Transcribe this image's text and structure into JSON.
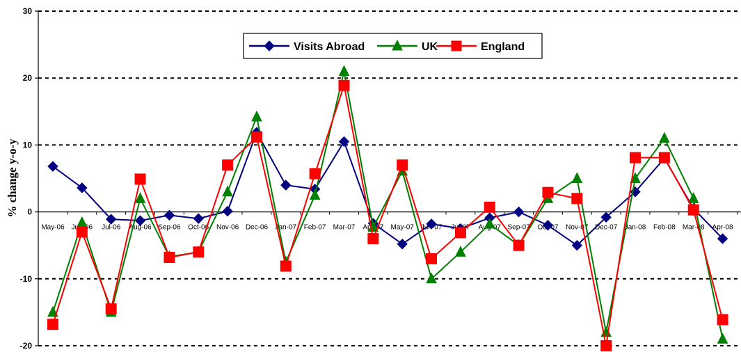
{
  "chart_data": {
    "type": "line",
    "ylabel": "% change y-o-y",
    "xlabel": "",
    "ylim": [
      -20,
      30
    ],
    "yticks": [
      "30",
      "20",
      "10",
      "0",
      "-10",
      "-20"
    ],
    "grid": "dashed horizontal",
    "legend_position": "top-center",
    "categories": [
      "May-06",
      "Jun-06",
      "Jul-06",
      "Aug-06",
      "Sep-06",
      "Oct-06",
      "Nov-06",
      "Dec-06",
      "Jan-07",
      "Feb-07",
      "Mar-07",
      "Apr-07",
      "May-07",
      "Jun-07",
      "Jul-07",
      "Aug-07",
      "Sep-07",
      "Oct-07",
      "Nov-07",
      "Dec-07",
      "Jan-08",
      "Feb-08",
      "Mar-08",
      "Apr-08"
    ],
    "series": [
      {
        "name": "Visits Abroad",
        "color": "#000080",
        "marker": "diamond",
        "values": [
          6.8,
          3.6,
          -1.1,
          -1.3,
          -0.5,
          -1.0,
          0.1,
          11.9,
          4.0,
          3.4,
          10.5,
          -1.7,
          -4.8,
          -1.8,
          -2.5,
          -0.9,
          0.0,
          -2.0,
          -5.0,
          -0.8,
          3.0,
          8.0,
          0.5,
          -4.0
        ]
      },
      {
        "name": "UK",
        "color": "#008000",
        "marker": "triangle",
        "values": [
          -15.0,
          -1.6,
          -15.0,
          2.0,
          -6.7,
          -6.0,
          3.0,
          14.2,
          -7.5,
          2.5,
          21.0,
          -2.3,
          6.1,
          -10.0,
          -6.0,
          -1.8,
          -5.0,
          2.0,
          5.0,
          -18.0,
          5.0,
          11.0,
          2.0,
          -19.0
        ]
      },
      {
        "name": "England",
        "color": "#FF0000",
        "marker": "square",
        "values": [
          -16.8,
          -3.0,
          -14.5,
          4.9,
          -6.8,
          -6.0,
          7.0,
          11.2,
          -8.1,
          5.7,
          18.9,
          -4.0,
          7.0,
          -7.0,
          -3.1,
          0.7,
          -5.0,
          2.9,
          2.0,
          -20.0,
          8.1,
          8.1,
          0.3,
          -16.1
        ]
      }
    ]
  }
}
